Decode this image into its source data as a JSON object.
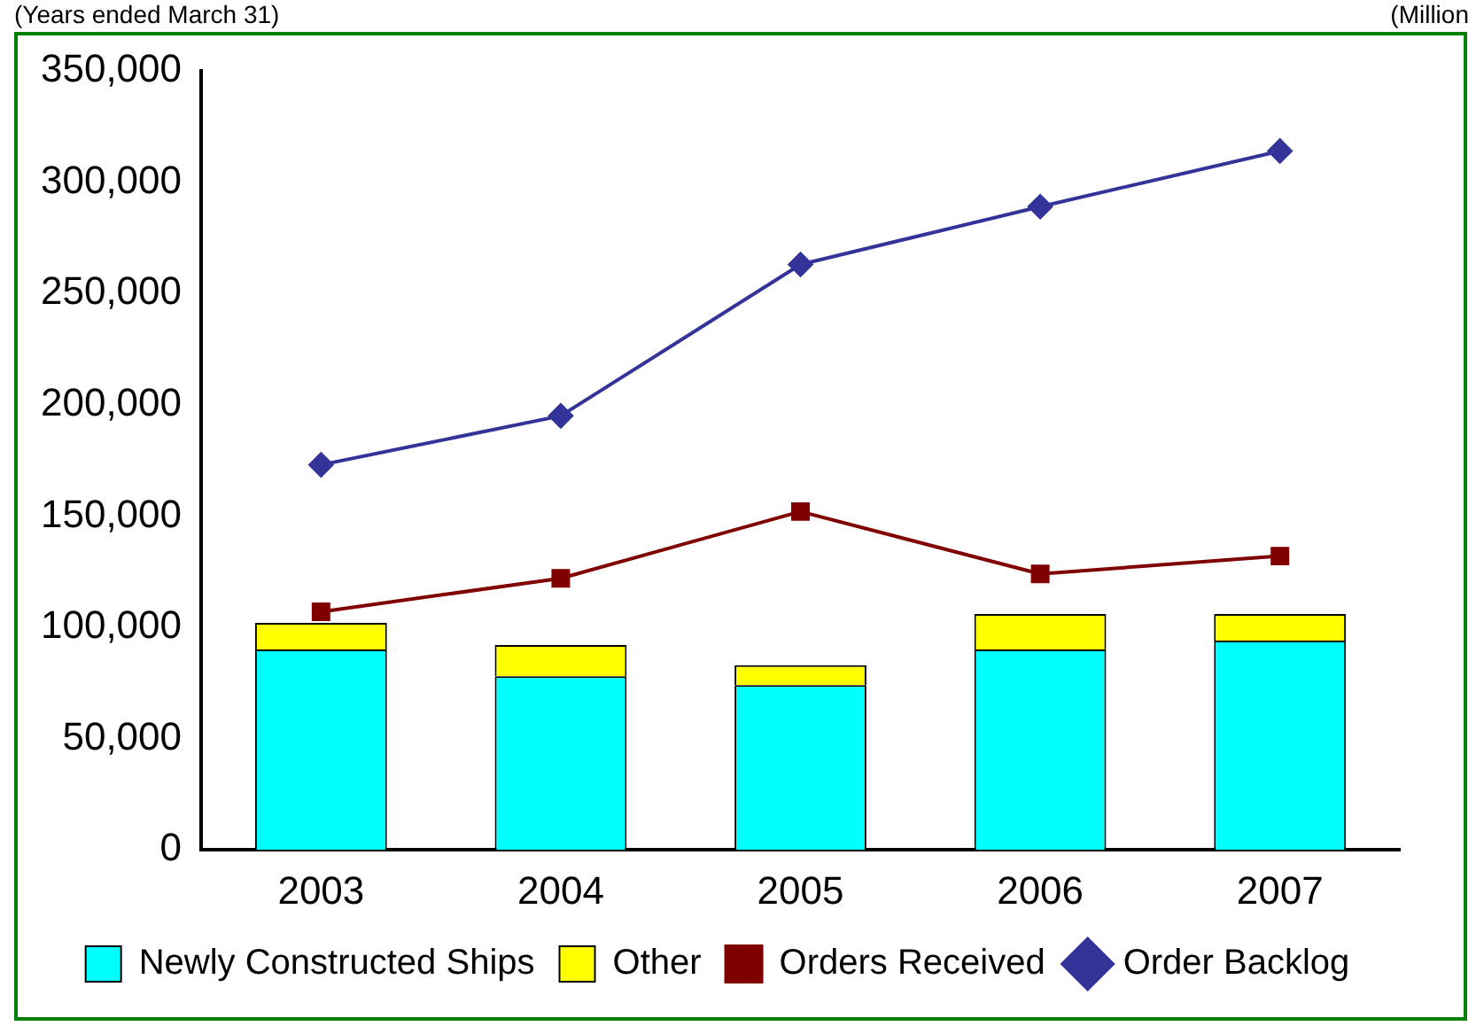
{
  "chart_data": {
    "type": "bar",
    "stacked": true,
    "categories": [
      "2003",
      "2004",
      "2005",
      "2006",
      "2007"
    ],
    "series": [
      {
        "name": "Newly Constructed Ships",
        "color": "#00ffff",
        "values": [
          90000,
          78000,
          74000,
          90000,
          94000
        ]
      },
      {
        "name": "Other",
        "color": "#ffff00",
        "values": [
          12000,
          14000,
          9000,
          16000,
          12000
        ]
      },
      {
        "name": "Orders Received",
        "type": "line",
        "color": "#800000",
        "marker": "square",
        "values": [
          107000,
          122000,
          152000,
          124000,
          132000
        ]
      },
      {
        "name": "Order Backlog",
        "type": "line",
        "color": "#333399",
        "marker": "diamond",
        "values": [
          173000,
          195000,
          263000,
          289000,
          314000
        ]
      }
    ],
    "ylim": [
      0,
      350000
    ],
    "yticks": [
      {
        "value": 0,
        "label": "0"
      },
      {
        "value": 50000,
        "label": "50,000"
      },
      {
        "value": 100000,
        "label": "100,000"
      },
      {
        "value": 150000,
        "label": "150,000"
      },
      {
        "value": 200000,
        "label": "200,000"
      },
      {
        "value": 250000,
        "label": "250,000"
      },
      {
        "value": 300000,
        "label": "300,000"
      },
      {
        "value": 350000,
        "label": "350,000"
      }
    ],
    "grid": false,
    "legend": "bottom",
    "annotations": [
      "(Years ended March 31)",
      "(Million"
    ]
  }
}
